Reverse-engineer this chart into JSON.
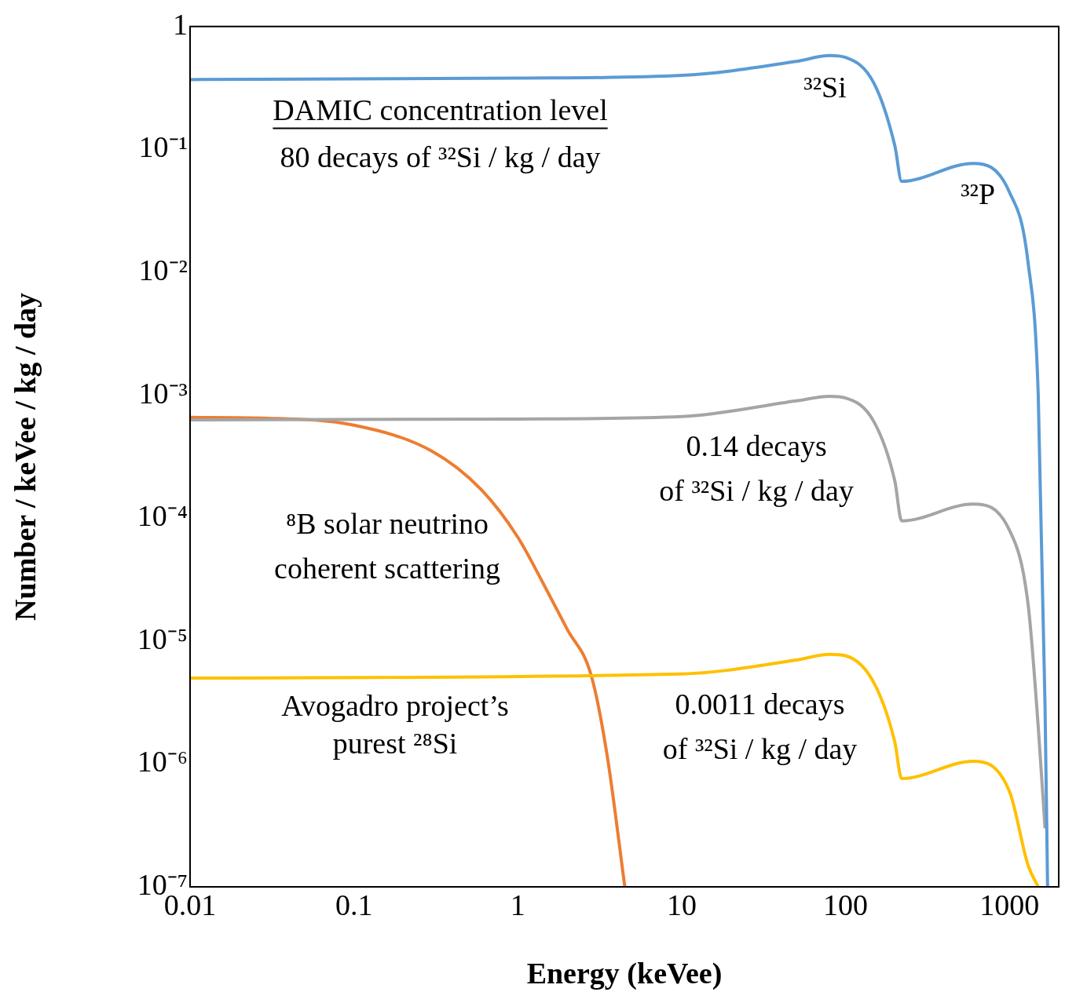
{
  "chart_data": {
    "type": "line",
    "xlabel": "Energy (keVee)",
    "ylabel": "Number / keVee / kg / day",
    "log": "xy",
    "grid": false,
    "legend": false,
    "marker": "none",
    "line_style": "solid",
    "xlim": [
      0.01,
      2000
    ],
    "xticks": [
      0.01,
      0.1,
      1,
      10,
      100,
      1000
    ],
    "ylim": [
      1e-07,
      1
    ],
    "yticks": [
      1,
      {
        "value": 0.1,
        "label": "10⁻¹"
      },
      {
        "value": 0.01,
        "label": "10⁻²"
      },
      {
        "value": 0.001,
        "label": "10⁻³"
      },
      {
        "value": 0.0001,
        "label": "10⁻⁴"
      },
      {
        "value": 1e-05,
        "label": "10⁻⁵"
      },
      {
        "value": 1e-06,
        "label": "10⁻⁶"
      },
      {
        "value": 1e-07,
        "label": "10⁻⁷"
      }
    ],
    "series": [
      {
        "color": "#5b9bd5",
        "x": [
          0.01,
          1,
          10,
          50,
          80,
          100,
          150,
          200,
          220,
          600,
          1000,
          1300,
          1500,
          1650,
          1710
        ],
        "values": [
          0.37,
          0.38,
          0.4,
          0.52,
          0.58,
          0.56,
          0.34,
          0.107,
          0.055,
          0.077,
          0.045,
          0.012,
          0.001,
          3e-06,
          1e-07
        ]
      },
      {
        "color": "#a5a5a5",
        "x": [
          0.01,
          1,
          10,
          50,
          80,
          100,
          150,
          200,
          220,
          600,
          1000,
          1300,
          1500,
          1650
        ],
        "values": [
          0.00063,
          0.00064,
          0.00067,
          0.0009,
          0.00098,
          0.00095,
          0.0006,
          0.0002,
          9.5e-05,
          0.00013,
          8e-05,
          2e-05,
          2e-06,
          3e-07
        ]
      },
      {
        "color": "#ffc000",
        "x": [
          0.01,
          10,
          50,
          80,
          100,
          150,
          200,
          220,
          600,
          1000,
          1300,
          1500
        ],
        "values": [
          5e-06,
          5.4e-06,
          7e-06,
          7.8e-06,
          7.6e-06,
          4.5e-06,
          1.5e-06,
          7.6e-07,
          1.05e-06,
          6e-07,
          1.5e-07,
          1e-07
        ]
      },
      {
        "color": "#ed7d31",
        "x": [
          0.01,
          0.03,
          0.1,
          0.3,
          0.6,
          1,
          1.5,
          2,
          2.8,
          3.5,
          4.5
        ],
        "values": [
          0.00066,
          0.00065,
          0.00057,
          0.00035,
          0.00017,
          7e-05,
          2.6e-05,
          1.25e-05,
          5.3e-06,
          1.2e-06,
          1e-07
        ]
      }
    ],
    "annotations": [
      "DAMIC concentration level",
      "80 decays of ³²Si / kg / day",
      "³²Si",
      "³²P",
      "0.14 decays",
      "of ³²Si / kg / day",
      "⁸B solar neutrino",
      "coherent scattering",
      "Avogadro project’s",
      "purest ²⁸Si",
      "0.0011 decays",
      "of ³²Si / kg / day"
    ]
  }
}
